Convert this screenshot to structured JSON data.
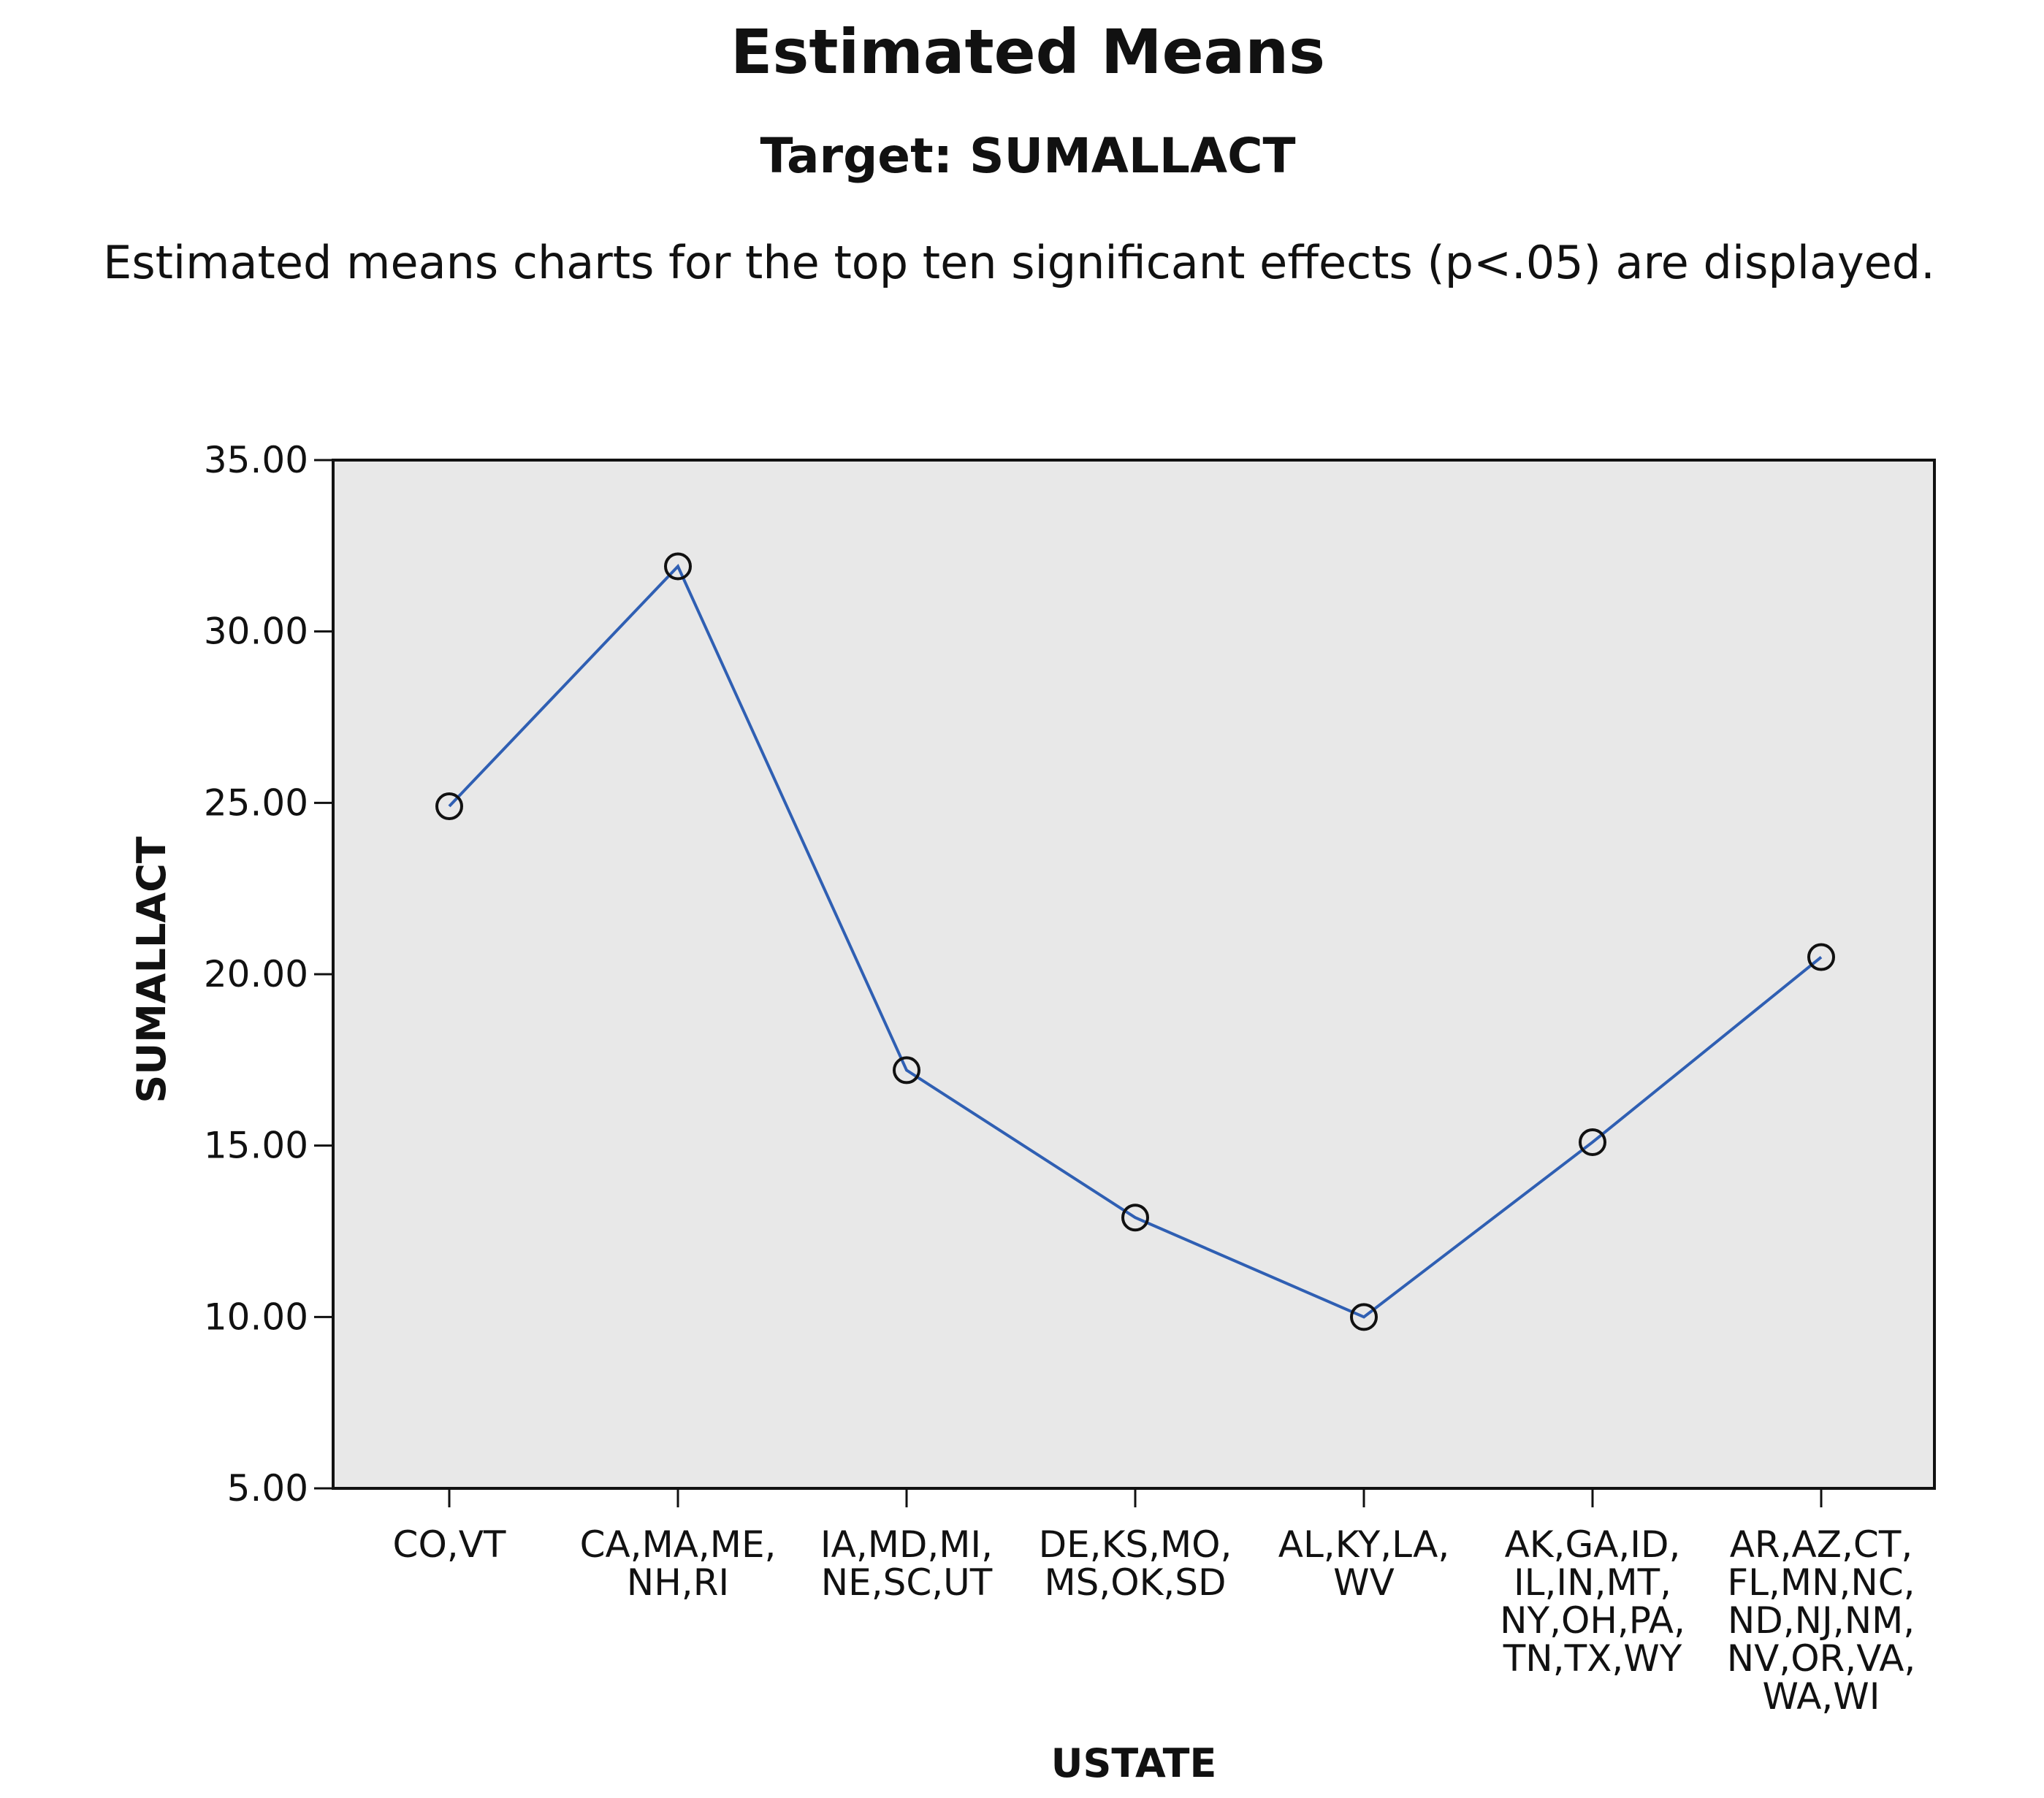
{
  "header": {
    "title": "Estimated Means",
    "subtitle": "Target: SUMALLACT",
    "note": "Estimated means charts for the top ten significant effects (p<.05) are displayed."
  },
  "chart_data": {
    "type": "line",
    "title": "Estimated Means",
    "xlabel": "USTATE",
    "ylabel": "SUMALLACT",
    "ylim": [
      5,
      35
    ],
    "y_ticks": [
      "5.00",
      "10.00",
      "15.00",
      "20.00",
      "25.00",
      "30.00",
      "35.00"
    ],
    "grid": false,
    "marker": "open-circle",
    "colors": {
      "line": "#2f5fb3",
      "marker": "#111111",
      "plot_background": "#e8e8e8",
      "frame": "#111111"
    },
    "categories": [
      [
        "CO,VT"
      ],
      [
        "CA,MA,ME,",
        "NH,RI"
      ],
      [
        "IA,MD,MI,",
        "NE,SC,UT"
      ],
      [
        "DE,KS,MO,",
        "MS,OK,SD"
      ],
      [
        "AL,KY,LA,",
        "WV"
      ],
      [
        "AK,GA,ID,",
        "IL,IN,MT,",
        "NY,OH,PA,",
        "TN,TX,WY"
      ],
      [
        "AR,AZ,CT,",
        "FL,MN,NC,",
        "ND,NJ,NM,",
        "NV,OR,VA,",
        "WA,WI"
      ]
    ],
    "series": [
      {
        "values": [
          24.9,
          31.9,
          17.2,
          12.9,
          10.0,
          15.1,
          20.5
        ]
      }
    ]
  }
}
